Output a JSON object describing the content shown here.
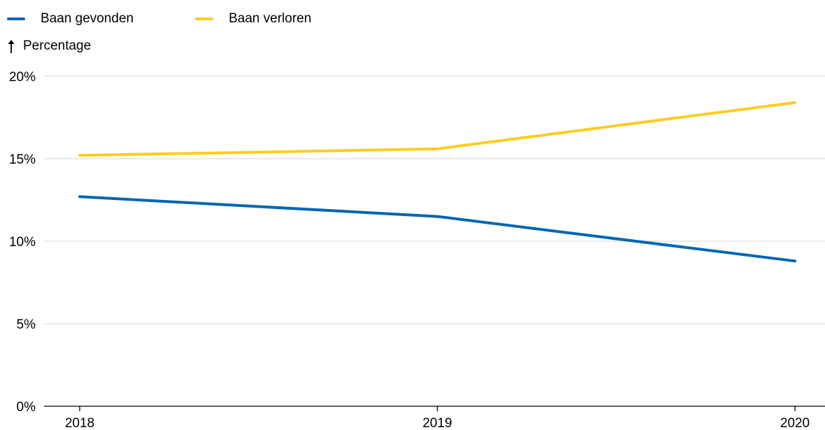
{
  "legend": [
    {
      "label": "Baan gevonden",
      "color": "#0066b3"
    },
    {
      "label": "Baan verloren",
      "color": "#ffcc1e"
    }
  ],
  "y_unit_label": "Percentage",
  "chart_data": {
    "type": "line",
    "x": [
      "2018",
      "2019",
      "2020"
    ],
    "series": [
      {
        "name": "Baan gevonden",
        "color": "#0066b3",
        "values": [
          12.7,
          11.5,
          8.8
        ]
      },
      {
        "name": "Baan verloren",
        "color": "#ffcc1e",
        "values": [
          15.2,
          15.6,
          18.4
        ]
      }
    ],
    "ylabel": "Percentage",
    "ylim": [
      0,
      20
    ],
    "yticks": [
      {
        "value": 0,
        "label": "0%"
      },
      {
        "value": 5,
        "label": "5%"
      },
      {
        "value": 10,
        "label": "10%"
      },
      {
        "value": 15,
        "label": "15%"
      },
      {
        "value": 20,
        "label": "20%"
      }
    ],
    "grid": true,
    "legend_position": "top-left"
  }
}
